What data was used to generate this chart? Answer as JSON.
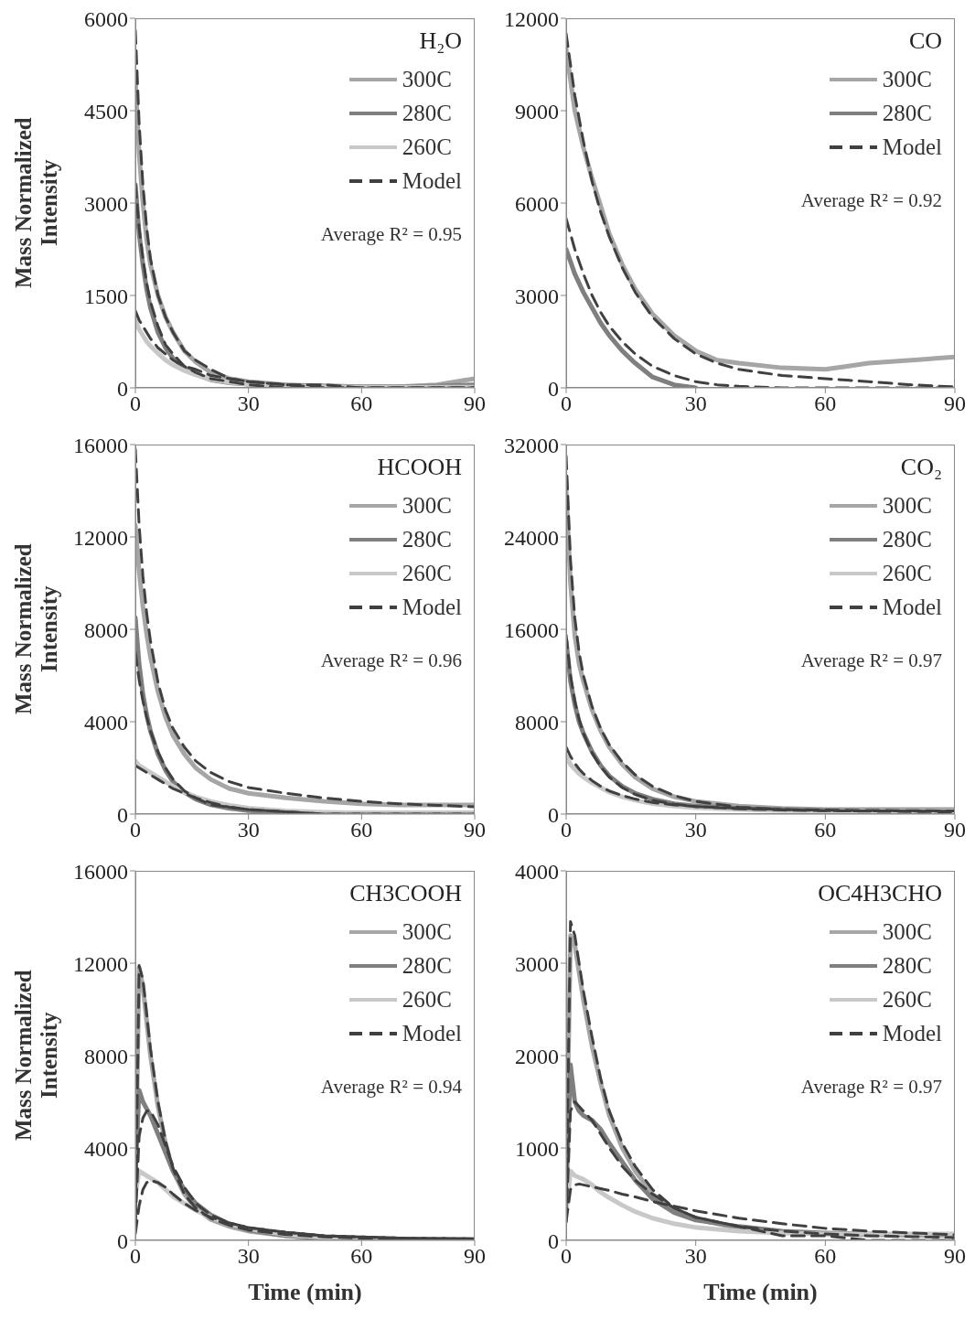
{
  "chart_data": [
    {
      "type": "line",
      "title": "H₂O",
      "ylabel": "Mass Normalized Intensity",
      "annotations": [
        "Average R² = 0.95"
      ],
      "legend": "top right",
      "x": [
        0,
        1,
        2,
        3,
        4,
        6,
        8,
        10,
        13,
        16,
        20,
        25,
        30,
        40,
        50,
        60,
        70,
        80,
        90
      ],
      "xlim": [
        0,
        90
      ],
      "xticks": [
        0,
        30,
        60,
        90
      ],
      "ylim": [
        0,
        6000
      ],
      "yticks": [
        0,
        1500,
        3000,
        4500,
        6000
      ],
      "series": [
        {
          "name": "300C",
          "color": "#a6a6a6",
          "values": [
            5000,
            3800,
            3000,
            2400,
            2000,
            1500,
            1150,
            900,
            600,
            420,
            250,
            150,
            100,
            50,
            30,
            20,
            20,
            50,
            150
          ]
        },
        {
          "name": "280C",
          "color": "#7f7f7f",
          "values": [
            3300,
            2500,
            2000,
            1600,
            1300,
            900,
            650,
            480,
            320,
            220,
            130,
            80,
            60,
            40,
            30,
            20,
            20,
            30,
            50
          ]
        },
        {
          "name": "260C",
          "color": "#c8c8c8",
          "values": [
            1100,
            950,
            850,
            750,
            680,
            560,
            450,
            370,
            280,
            210,
            140,
            90,
            60,
            30,
            20,
            10,
            10,
            10,
            10
          ]
        },
        {
          "name": "Model",
          "color": "#404040",
          "line_style": "dashed",
          "values": [
            5800,
            4300,
            3300,
            2600,
            2100,
            1500,
            1150,
            900,
            600,
            450,
            300,
            150,
            100,
            50,
            0,
            0,
            0,
            0,
            0
          ]
        },
        {
          "color": "#404040",
          "line_style": "dashed",
          "values": [
            3300,
            2600,
            2100,
            1700,
            1400,
            1000,
            700,
            550,
            350,
            250,
            150,
            100,
            50,
            0,
            0,
            0,
            0,
            0,
            0
          ]
        },
        {
          "color": "#404040",
          "line_style": "dashed",
          "values": [
            1250,
            1100,
            1000,
            900,
            800,
            650,
            550,
            450,
            350,
            300,
            200,
            150,
            100,
            50,
            50,
            0,
            0,
            0,
            0
          ]
        }
      ]
    },
    {
      "type": "line",
      "title": "CO",
      "annotations": [
        "Average R² = 0.92"
      ],
      "legend": "top right",
      "x": [
        0,
        2,
        4,
        6,
        8,
        10,
        13,
        16,
        20,
        25,
        30,
        35,
        40,
        50,
        60,
        65,
        70,
        80,
        90
      ],
      "xlim": [
        0,
        90
      ],
      "xticks": [
        0,
        30,
        60,
        90
      ],
      "ylim": [
        0,
        12000
      ],
      "yticks": [
        0,
        3000,
        6000,
        9000,
        12000
      ],
      "series": [
        {
          "name": "300C",
          "color": "#a6a6a6",
          "values": [
            11000,
            9000,
            7800,
            6800,
            5900,
            5000,
            4000,
            3200,
            2400,
            1700,
            1200,
            900,
            800,
            650,
            600,
            700,
            800,
            900,
            1000
          ]
        },
        {
          "name": "280C",
          "color": "#7f7f7f",
          "values": [
            4500,
            3700,
            3100,
            2600,
            2100,
            1700,
            1200,
            800,
            350,
            100,
            0,
            null,
            null,
            null,
            null,
            null,
            null,
            null,
            null
          ]
        },
        {
          "name": "Model",
          "color": "#404040",
          "line_style": "dashed",
          "values": [
            11500,
            9500,
            8000,
            6700,
            5700,
            4900,
            3900,
            3100,
            2300,
            1600,
            1100,
            800,
            600,
            400,
            300,
            250,
            200,
            100,
            30
          ]
        },
        {
          "color": "#404040",
          "line_style": "dashed",
          "values": [
            5500,
            4500,
            3700,
            3000,
            2450,
            2000,
            1500,
            1100,
            700,
            400,
            200,
            100,
            50,
            0,
            0,
            0,
            0,
            0,
            0
          ]
        }
      ]
    },
    {
      "type": "line",
      "title": "HCOOH",
      "ylabel": "Mass Normalized Intensity",
      "annotations": [
        "Average R² = 0.96"
      ],
      "legend": "top right",
      "x": [
        0,
        1,
        2,
        3,
        4,
        6,
        8,
        10,
        13,
        16,
        20,
        25,
        30,
        40,
        50,
        60,
        70,
        80,
        90
      ],
      "xlim": [
        0,
        90
      ],
      "xticks": [
        0,
        30,
        60,
        90
      ],
      "ylim": [
        0,
        16000
      ],
      "yticks": [
        0,
        4000,
        8000,
        12000,
        16000
      ],
      "series": [
        {
          "name": "300C",
          "color": "#a6a6a6",
          "values": [
            12500,
            10500,
            9000,
            7800,
            6800,
            5300,
            4200,
            3400,
            2600,
            2000,
            1500,
            1100,
            900,
            700,
            550,
            450,
            400,
            400,
            400
          ]
        },
        {
          "name": "280C",
          "color": "#7f7f7f",
          "values": [
            8500,
            6500,
            5200,
            4300,
            3600,
            2600,
            1900,
            1400,
            950,
            650,
            400,
            250,
            150,
            80,
            50,
            40,
            40,
            40,
            40
          ]
        },
        {
          "name": "260C",
          "color": "#c8c8c8",
          "values": [
            2300,
            2100,
            2000,
            1900,
            1800,
            1600,
            1400,
            1200,
            950,
            750,
            550,
            380,
            260,
            140,
            80,
            50,
            50,
            50,
            50
          ]
        },
        {
          "name": "Model",
          "color": "#404040",
          "line_style": "dashed",
          "values": [
            15800,
            12500,
            10300,
            8700,
            7500,
            5700,
            4500,
            3700,
            2900,
            2300,
            1800,
            1400,
            1150,
            900,
            700,
            550,
            450,
            380,
            320
          ]
        },
        {
          "color": "#404040",
          "line_style": "dashed",
          "values": [
            7000,
            5800,
            4900,
            4200,
            3600,
            2700,
            2000,
            1500,
            1000,
            700,
            400,
            300,
            200,
            100,
            0,
            0,
            0,
            0,
            0
          ]
        },
        {
          "color": "#404040",
          "line_style": "dashed",
          "values": [
            2100,
            2000,
            1900,
            1800,
            1700,
            1500,
            1300,
            1100,
            900,
            700,
            500,
            300,
            200,
            100,
            0,
            0,
            0,
            0,
            0
          ]
        }
      ]
    },
    {
      "type": "line",
      "title": "CO₂",
      "annotations": [
        "Average R² = 0.97"
      ],
      "legend": "top right",
      "x": [
        0,
        1,
        2,
        3,
        4,
        6,
        8,
        10,
        13,
        16,
        20,
        25,
        30,
        40,
        50,
        60,
        70,
        80,
        90
      ],
      "xlim": [
        0,
        90
      ],
      "xticks": [
        0,
        30,
        60,
        90
      ],
      "ylim": [
        0,
        32000
      ],
      "yticks": [
        0,
        8000,
        16000,
        24000,
        32000
      ],
      "series": [
        {
          "name": "300C",
          "color": "#a6a6a6",
          "values": [
            28000,
            20000,
            15500,
            13000,
            11500,
            9000,
            7200,
            5800,
            4300,
            3200,
            2200,
            1500,
            1100,
            700,
            500,
            400,
            400,
            400,
            400
          ]
        },
        {
          "name": "280C",
          "color": "#7f7f7f",
          "values": [
            15000,
            11500,
            9500,
            8000,
            7000,
            5400,
            4200,
            3300,
            2400,
            1800,
            1300,
            900,
            700,
            500,
            400,
            350,
            350,
            350,
            350
          ]
        },
        {
          "name": "260C",
          "color": "#c8c8c8",
          "values": [
            5000,
            4300,
            3900,
            3500,
            3200,
            2700,
            2300,
            1900,
            1500,
            1200,
            900,
            700,
            550,
            400,
            300,
            300,
            300,
            300,
            300
          ]
        },
        {
          "name": "Model",
          "color": "#404040",
          "line_style": "dashed",
          "values": [
            31000,
            22000,
            17000,
            14000,
            12000,
            9300,
            7400,
            6000,
            4500,
            3400,
            2400,
            1600,
            1100,
            600,
            400,
            300,
            250,
            220,
            200
          ]
        },
        {
          "color": "#404040",
          "line_style": "dashed",
          "values": [
            15500,
            12000,
            9800,
            8200,
            7000,
            5300,
            4100,
            3200,
            2300,
            1700,
            1200,
            850,
            650,
            450,
            350,
            300,
            280,
            260,
            250
          ]
        },
        {
          "color": "#404040",
          "line_style": "dashed",
          "values": [
            5800,
            5000,
            4400,
            3900,
            3500,
            2900,
            2400,
            2000,
            1600,
            1300,
            1000,
            800,
            650,
            500,
            400,
            350,
            320,
            300,
            280
          ]
        }
      ]
    },
    {
      "type": "line",
      "title": "CH3COOH",
      "ylabel": "Mass Normalized Intensity",
      "xlabel": "Time (min)",
      "annotations": [
        "Average R² = 0.94"
      ],
      "legend": "top right",
      "x": [
        0,
        1,
        2,
        3,
        4,
        6,
        8,
        10,
        13,
        16,
        20,
        25,
        30,
        40,
        50,
        60,
        70,
        80,
        90
      ],
      "xlim": [
        0,
        90
      ],
      "xticks": [
        0,
        30,
        60,
        90
      ],
      "ylim": [
        0,
        16000
      ],
      "yticks": [
        0,
        4000,
        8000,
        12000,
        16000
      ],
      "series": [
        {
          "name": "300C",
          "color": "#a6a6a6",
          "values": [
            2000,
            11800,
            11000,
            9500,
            8000,
            5800,
            4200,
            3000,
            2000,
            1400,
            900,
            600,
            400,
            200,
            100,
            80,
            60,
            50,
            50
          ]
        },
        {
          "name": "280C",
          "color": "#7f7f7f",
          "values": [
            3000,
            6500,
            6000,
            5700,
            5400,
            4600,
            3800,
            3000,
            2200,
            1600,
            1100,
            700,
            450,
            200,
            100,
            80,
            60,
            50,
            50
          ]
        },
        {
          "name": "260C",
          "color": "#c8c8c8",
          "values": [
            2000,
            3000,
            2900,
            2800,
            2700,
            2500,
            2200,
            1900,
            1600,
            1300,
            1000,
            700,
            500,
            250,
            130,
            80,
            60,
            50,
            50
          ]
        },
        {
          "name": "Model",
          "color": "#404040",
          "line_style": "dashed",
          "values": [
            500,
            11900,
            11300,
            9800,
            8300,
            6000,
            4300,
            3100,
            2000,
            1400,
            950,
            650,
            450,
            250,
            150,
            100,
            70,
            50,
            40
          ]
        },
        {
          "color": "#404040",
          "line_style": "dashed",
          "values": [
            800,
            4500,
            5300,
            5600,
            5600,
            5000,
            4100,
            3200,
            2300,
            1600,
            1100,
            750,
            550,
            350,
            200,
            150,
            100,
            80,
            60
          ]
        },
        {
          "color": "#404040",
          "line_style": "dashed",
          "values": [
            300,
            1500,
            2200,
            2500,
            2600,
            2500,
            2300,
            2000,
            1600,
            1300,
            1000,
            750,
            550,
            350,
            200,
            150,
            100,
            80,
            60
          ]
        }
      ]
    },
    {
      "type": "line",
      "title": "OC4H3CHO",
      "xlabel": "Time (min)",
      "annotations": [
        "Average R² = 0.97"
      ],
      "legend": "top right",
      "x": [
        0,
        1,
        2,
        3,
        4,
        6,
        8,
        10,
        13,
        16,
        20,
        25,
        30,
        40,
        50,
        60,
        70,
        80,
        90
      ],
      "xlim": [
        0,
        90
      ],
      "xticks": [
        0,
        30,
        60,
        90
      ],
      "ylim": [
        0,
        4000
      ],
      "yticks": [
        0,
        1000,
        2000,
        3000,
        4000
      ],
      "series": [
        {
          "name": "300C",
          "color": "#a6a6a6",
          "values": [
            600,
            3300,
            3200,
            2900,
            2600,
            2100,
            1700,
            1350,
            1000,
            750,
            500,
            330,
            230,
            130,
            90,
            70,
            60,
            60,
            60
          ]
        },
        {
          "name": "280C",
          "color": "#7f7f7f",
          "values": [
            500,
            1900,
            1500,
            1400,
            1350,
            1300,
            1200,
            1050,
            850,
            650,
            450,
            300,
            220,
            150,
            100,
            80,
            70,
            60,
            60
          ]
        },
        {
          "name": "260C",
          "color": "#c8c8c8",
          "values": [
            300,
            750,
            700,
            680,
            660,
            600,
            520,
            460,
            380,
            310,
            240,
            180,
            140,
            100,
            80,
            70,
            70,
            70,
            70
          ]
        },
        {
          "name": "Model",
          "color": "#404040",
          "line_style": "dashed",
          "values": [
            300,
            3450,
            3300,
            3000,
            2700,
            2200,
            1750,
            1400,
            1050,
            800,
            550,
            350,
            250,
            150,
            50,
            50,
            0,
            0,
            0
          ]
        },
        {
          "color": "#404040",
          "line_style": "dashed",
          "values": [
            200,
            1400,
            1500,
            1450,
            1400,
            1300,
            1150,
            1000,
            800,
            650,
            500,
            350,
            250,
            150,
            100,
            70,
            50,
            40,
            30
          ]
        },
        {
          "color": "#404040",
          "line_style": "dashed",
          "values": [
            200,
            550,
            600,
            610,
            600,
            580,
            560,
            540,
            500,
            470,
            420,
            370,
            320,
            240,
            180,
            130,
            100,
            80,
            60
          ]
        }
      ]
    }
  ]
}
